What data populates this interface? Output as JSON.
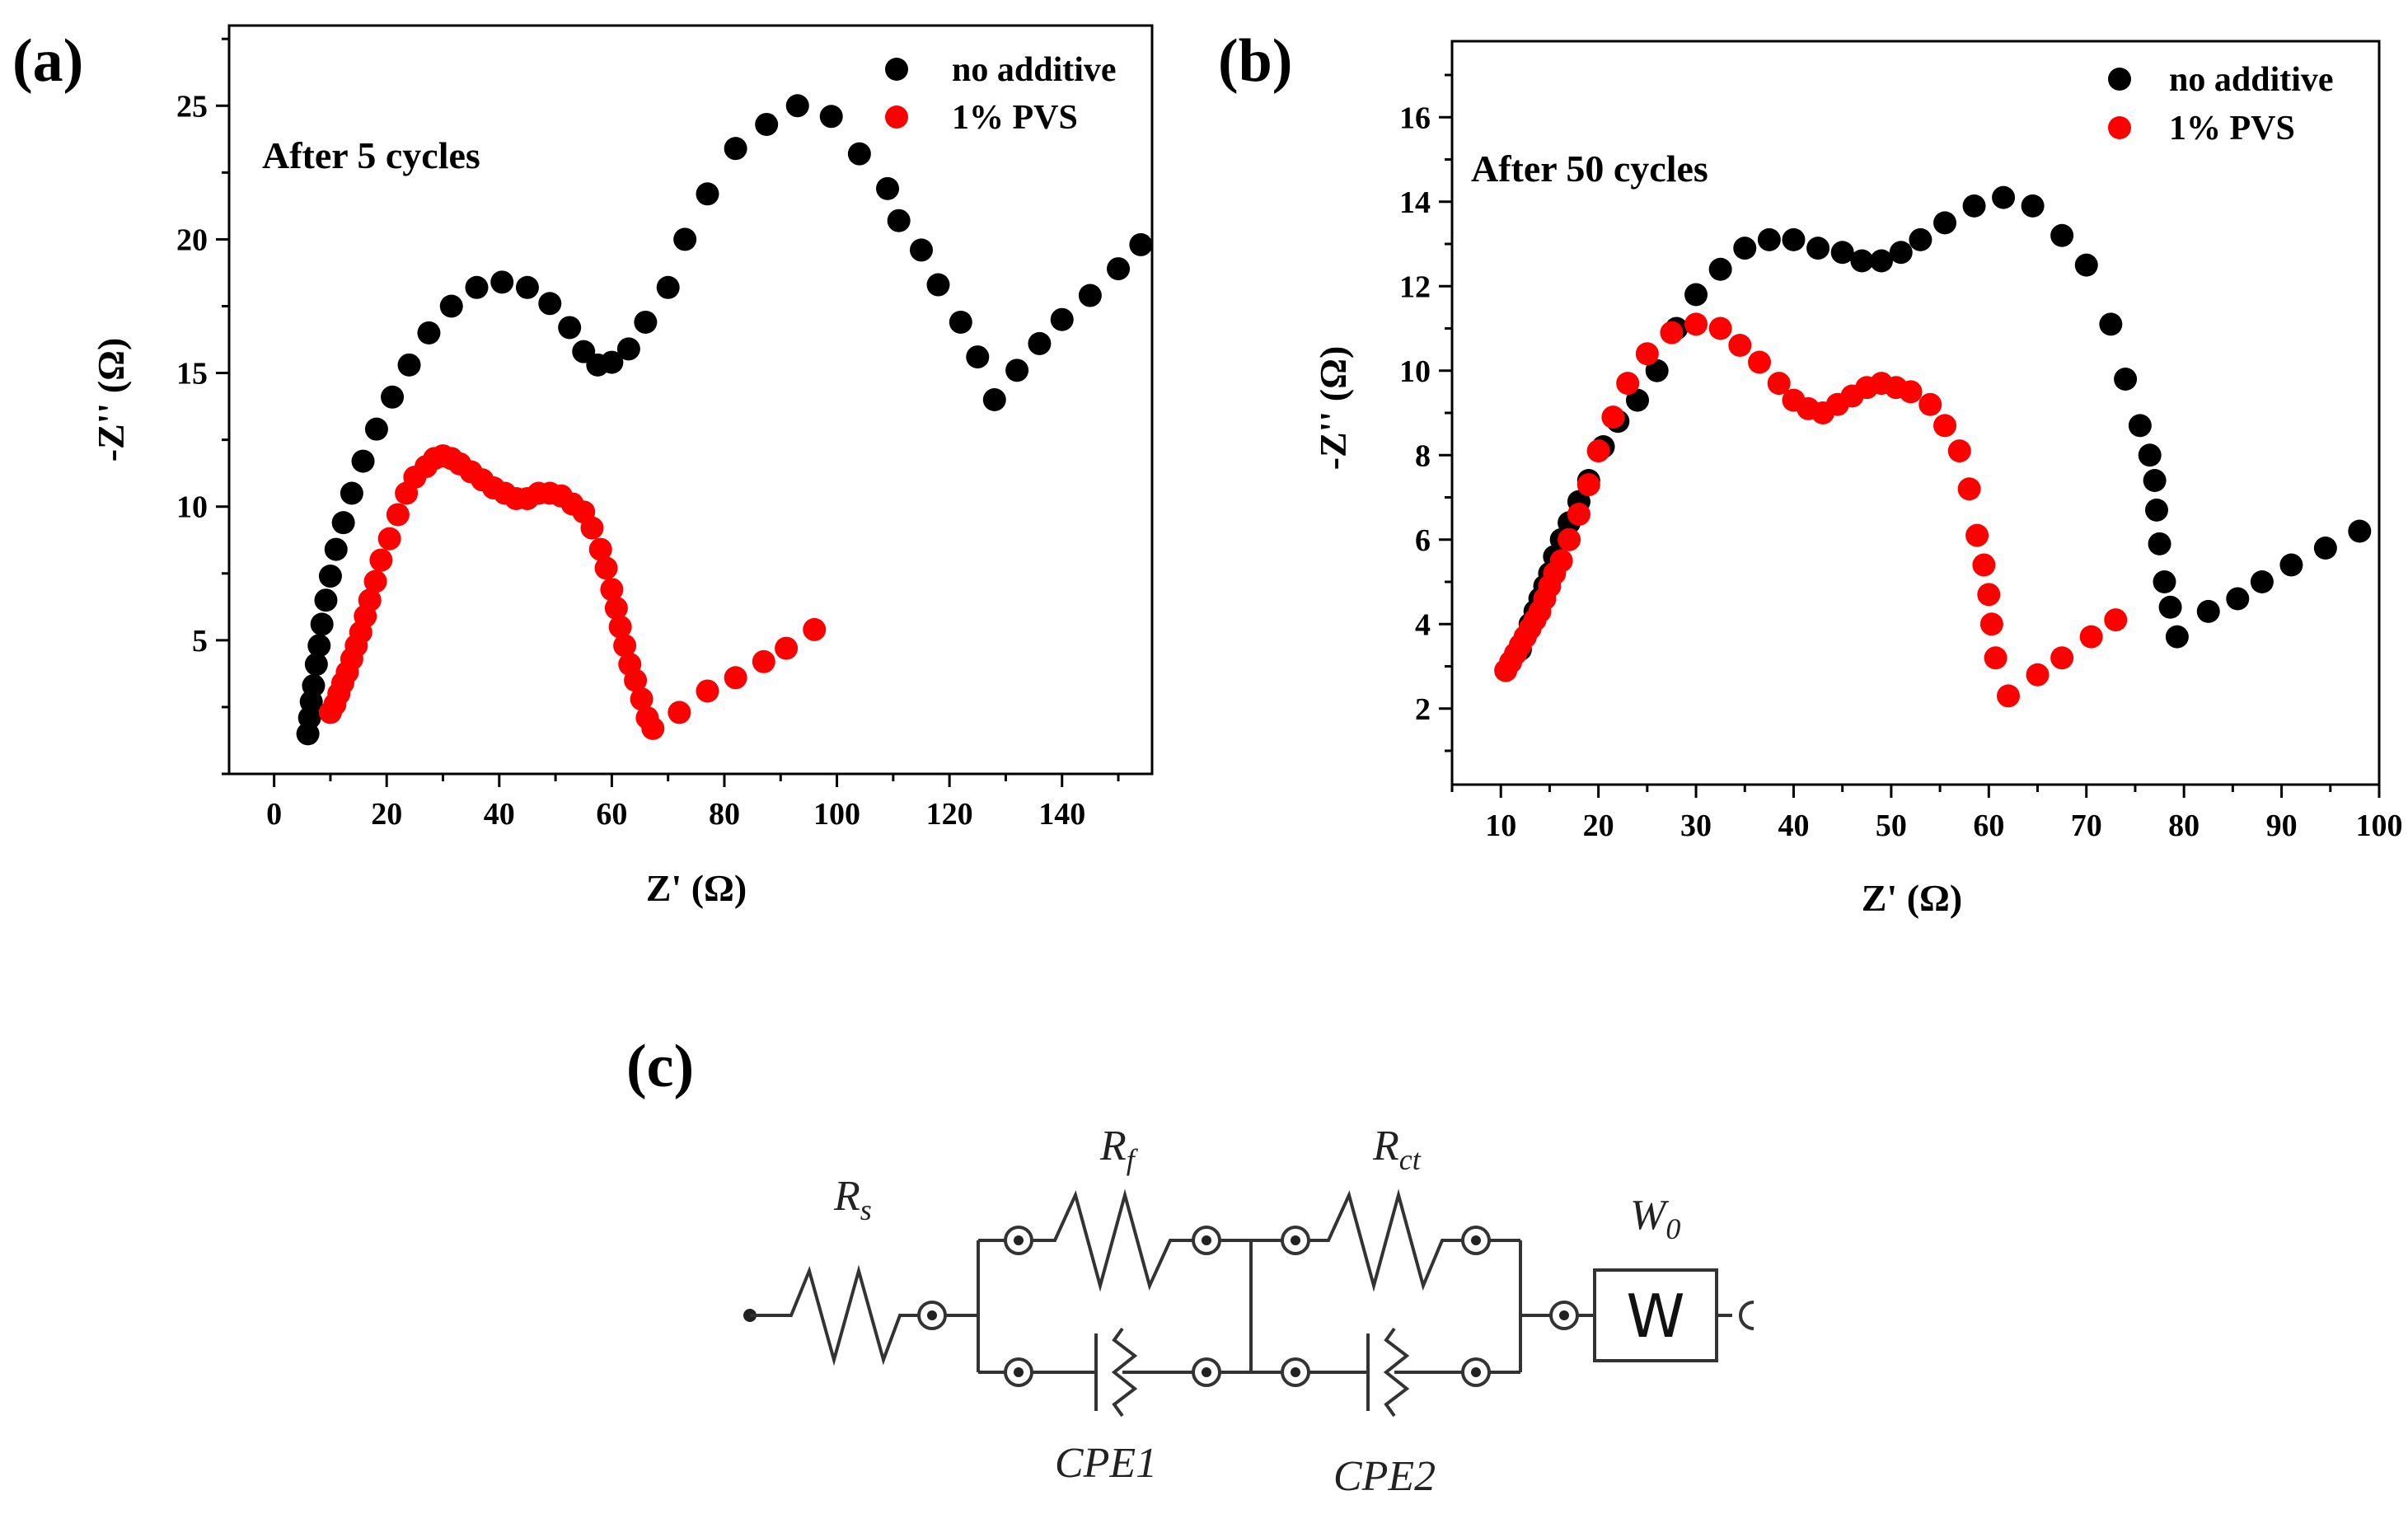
{
  "chart_data": [
    {
      "type": "scatter",
      "panel_label": "(a)",
      "annotation": "After 5 cycles",
      "xlabel": "Z' (Ω)",
      "ylabel": "-Z'' (Ω)",
      "xlim": [
        -8,
        156
      ],
      "ylim": [
        0,
        28
      ],
      "xticks": [
        0,
        20,
        40,
        60,
        80,
        100,
        120,
        140
      ],
      "yticks": [
        5,
        10,
        15,
        20,
        25
      ],
      "legend_position": "top-right",
      "series": [
        {
          "name": "no additive",
          "color": "#000000",
          "points": [
            [
              6,
              1.5
            ],
            [
              6.3,
              2.1
            ],
            [
              6.6,
              2.7
            ],
            [
              7,
              3.3
            ],
            [
              7.5,
              4.1
            ],
            [
              8,
              4.8
            ],
            [
              8.5,
              5.6
            ],
            [
              9.2,
              6.5
            ],
            [
              10,
              7.4
            ],
            [
              11,
              8.4
            ],
            [
              12.3,
              9.4
            ],
            [
              13.8,
              10.5
            ],
            [
              15.8,
              11.7
            ],
            [
              18.2,
              12.9
            ],
            [
              21,
              14.1
            ],
            [
              24,
              15.3
            ],
            [
              27.5,
              16.5
            ],
            [
              31.5,
              17.5
            ],
            [
              36,
              18.2
            ],
            [
              40.5,
              18.4
            ],
            [
              45,
              18.2
            ],
            [
              49,
              17.6
            ],
            [
              52.5,
              16.7
            ],
            [
              55,
              15.8
            ],
            [
              57.5,
              15.3
            ],
            [
              60,
              15.4
            ],
            [
              63,
              15.9
            ],
            [
              66,
              16.9
            ],
            [
              70,
              18.2
            ],
            [
              73,
              20
            ],
            [
              77,
              21.7
            ],
            [
              82,
              23.4
            ],
            [
              87.5,
              24.3
            ],
            [
              93,
              25
            ],
            [
              99,
              24.6
            ],
            [
              104,
              23.2
            ],
            [
              109,
              21.9
            ],
            [
              111,
              20.7
            ],
            [
              115,
              19.6
            ],
            [
              118,
              18.3
            ],
            [
              122,
              16.9
            ],
            [
              125,
              15.6
            ],
            [
              128,
              14
            ],
            [
              132,
              15.1
            ],
            [
              136,
              16.1
            ],
            [
              140,
              17
            ],
            [
              145,
              17.9
            ],
            [
              150,
              18.9
            ],
            [
              154,
              19.8
            ]
          ]
        },
        {
          "name": "1% PVS",
          "color": "#ff0000",
          "points": [
            [
              10,
              2.3
            ],
            [
              10.8,
              2.6
            ],
            [
              11.5,
              3
            ],
            [
              12.2,
              3.4
            ],
            [
              13,
              3.8
            ],
            [
              13.8,
              4.3
            ],
            [
              14.6,
              4.8
            ],
            [
              15.4,
              5.3
            ],
            [
              16.2,
              5.9
            ],
            [
              17,
              6.5
            ],
            [
              18,
              7.2
            ],
            [
              19,
              8
            ],
            [
              20.5,
              8.8
            ],
            [
              22,
              9.7
            ],
            [
              23.5,
              10.5
            ],
            [
              25,
              11.1
            ],
            [
              27,
              11.5
            ],
            [
              28.5,
              11.8
            ],
            [
              30,
              11.9
            ],
            [
              31.5,
              11.8
            ],
            [
              33,
              11.6
            ],
            [
              35,
              11.3
            ],
            [
              37,
              11
            ],
            [
              39,
              10.7
            ],
            [
              41,
              10.5
            ],
            [
              43,
              10.3
            ],
            [
              45,
              10.3
            ],
            [
              47,
              10.5
            ],
            [
              49,
              10.5
            ],
            [
              51,
              10.4
            ],
            [
              53,
              10.1
            ],
            [
              55,
              9.8
            ],
            [
              56.5,
              9.2
            ],
            [
              58,
              8.4
            ],
            [
              59,
              7.7
            ],
            [
              60,
              6.9
            ],
            [
              60.8,
              6.2
            ],
            [
              61.5,
              5.5
            ],
            [
              62.3,
              4.8
            ],
            [
              63.2,
              4.1
            ],
            [
              64.2,
              3.5
            ],
            [
              65.3,
              2.8
            ],
            [
              66.3,
              2.1
            ],
            [
              67.3,
              1.7
            ],
            [
              72,
              2.3
            ],
            [
              77,
              3.1
            ],
            [
              82,
              3.6
            ],
            [
              87,
              4.2
            ],
            [
              91,
              4.7
            ],
            [
              96,
              5.4
            ]
          ]
        }
      ]
    },
    {
      "type": "scatter",
      "panel_label": "(b)",
      "annotation": "After 50 cycles",
      "xlabel": "Z' (Ω)",
      "ylabel": "-Z'' (Ω)",
      "xlim": [
        5,
        100
      ],
      "ylim": [
        0.2,
        17.8
      ],
      "xticks": [
        10,
        20,
        30,
        40,
        50,
        60,
        70,
        80,
        90,
        100
      ],
      "yticks": [
        2,
        4,
        6,
        8,
        10,
        12,
        14,
        16
      ],
      "legend_position": "top-right",
      "series": [
        {
          "name": "no additive",
          "color": "#000000",
          "points": [
            [
              12,
              3.4
            ],
            [
              12.5,
              3.7
            ],
            [
              13,
              4
            ],
            [
              13.5,
              4.3
            ],
            [
              14,
              4.6
            ],
            [
              14.5,
              4.9
            ],
            [
              15,
              5.2
            ],
            [
              15.5,
              5.6
            ],
            [
              16.2,
              6
            ],
            [
              17,
              6.4
            ],
            [
              18,
              6.9
            ],
            [
              19,
              7.4
            ],
            [
              20.5,
              8.2
            ],
            [
              22,
              8.8
            ],
            [
              24,
              9.3
            ],
            [
              26,
              10
            ],
            [
              28,
              11
            ],
            [
              30,
              11.8
            ],
            [
              32.5,
              12.4
            ],
            [
              35,
              12.9
            ],
            [
              37.5,
              13.1
            ],
            [
              40,
              13.1
            ],
            [
              42.5,
              12.9
            ],
            [
              45,
              12.8
            ],
            [
              47,
              12.6
            ],
            [
              49,
              12.6
            ],
            [
              51,
              12.8
            ],
            [
              53,
              13.1
            ],
            [
              55.5,
              13.5
            ],
            [
              58.5,
              13.9
            ],
            [
              61.5,
              14.1
            ],
            [
              64.5,
              13.9
            ],
            [
              67.5,
              13.2
            ],
            [
              70,
              12.5
            ],
            [
              72.5,
              11.1
            ],
            [
              74,
              9.8
            ],
            [
              75.5,
              8.7
            ],
            [
              76.5,
              8
            ],
            [
              77,
              7.4
            ],
            [
              77.2,
              6.7
            ],
            [
              77.5,
              5.9
            ],
            [
              78,
              5
            ],
            [
              78.6,
              4.4
            ],
            [
              79.3,
              3.7
            ],
            [
              82.5,
              4.3
            ],
            [
              85.5,
              4.6
            ],
            [
              88,
              5
            ],
            [
              91,
              5.4
            ],
            [
              94.5,
              5.8
            ],
            [
              98,
              6.2
            ]
          ]
        },
        {
          "name": "1% PVS",
          "color": "#ff0000",
          "points": [
            [
              10.5,
              2.9
            ],
            [
              11,
              3.1
            ],
            [
              11.5,
              3.3
            ],
            [
              12,
              3.5
            ],
            [
              12.5,
              3.7
            ],
            [
              13,
              3.9
            ],
            [
              13.5,
              4.1
            ],
            [
              14,
              4.3
            ],
            [
              14.5,
              4.6
            ],
            [
              15,
              4.9
            ],
            [
              15.5,
              5.2
            ],
            [
              16.2,
              5.5
            ],
            [
              17,
              6
            ],
            [
              18,
              6.6
            ],
            [
              19,
              7.3
            ],
            [
              20,
              8.1
            ],
            [
              21.5,
              8.9
            ],
            [
              23,
              9.7
            ],
            [
              25,
              10.4
            ],
            [
              27.5,
              10.9
            ],
            [
              30,
              11.1
            ],
            [
              32.5,
              11
            ],
            [
              34.5,
              10.6
            ],
            [
              36.5,
              10.2
            ],
            [
              38.5,
              9.7
            ],
            [
              40,
              9.3
            ],
            [
              41.5,
              9.1
            ],
            [
              43,
              9
            ],
            [
              44.5,
              9.2
            ],
            [
              46,
              9.4
            ],
            [
              47.5,
              9.6
            ],
            [
              49,
              9.7
            ],
            [
              50.5,
              9.6
            ],
            [
              52,
              9.5
            ],
            [
              54,
              9.2
            ],
            [
              55.5,
              8.7
            ],
            [
              57,
              8.1
            ],
            [
              58,
              7.2
            ],
            [
              58.8,
              6.1
            ],
            [
              59.5,
              5.4
            ],
            [
              60,
              4.7
            ],
            [
              60.3,
              4
            ],
            [
              60.7,
              3.2
            ],
            [
              62,
              2.3
            ],
            [
              65,
              2.8
            ],
            [
              67.5,
              3.2
            ],
            [
              70.5,
              3.7
            ],
            [
              73,
              4.1
            ]
          ]
        }
      ]
    }
  ],
  "circuit": {
    "panel_label": "(c)",
    "labels": {
      "rs_main": "R",
      "rs_sub": "s",
      "rf_main": "R",
      "rf_sub": "f",
      "rct_main": "R",
      "rct_sub": "ct",
      "w0_main": "W",
      "w0_sub": "0",
      "cpe1": "CPE1",
      "cpe2": "CPE2",
      "w_box": "W"
    }
  }
}
